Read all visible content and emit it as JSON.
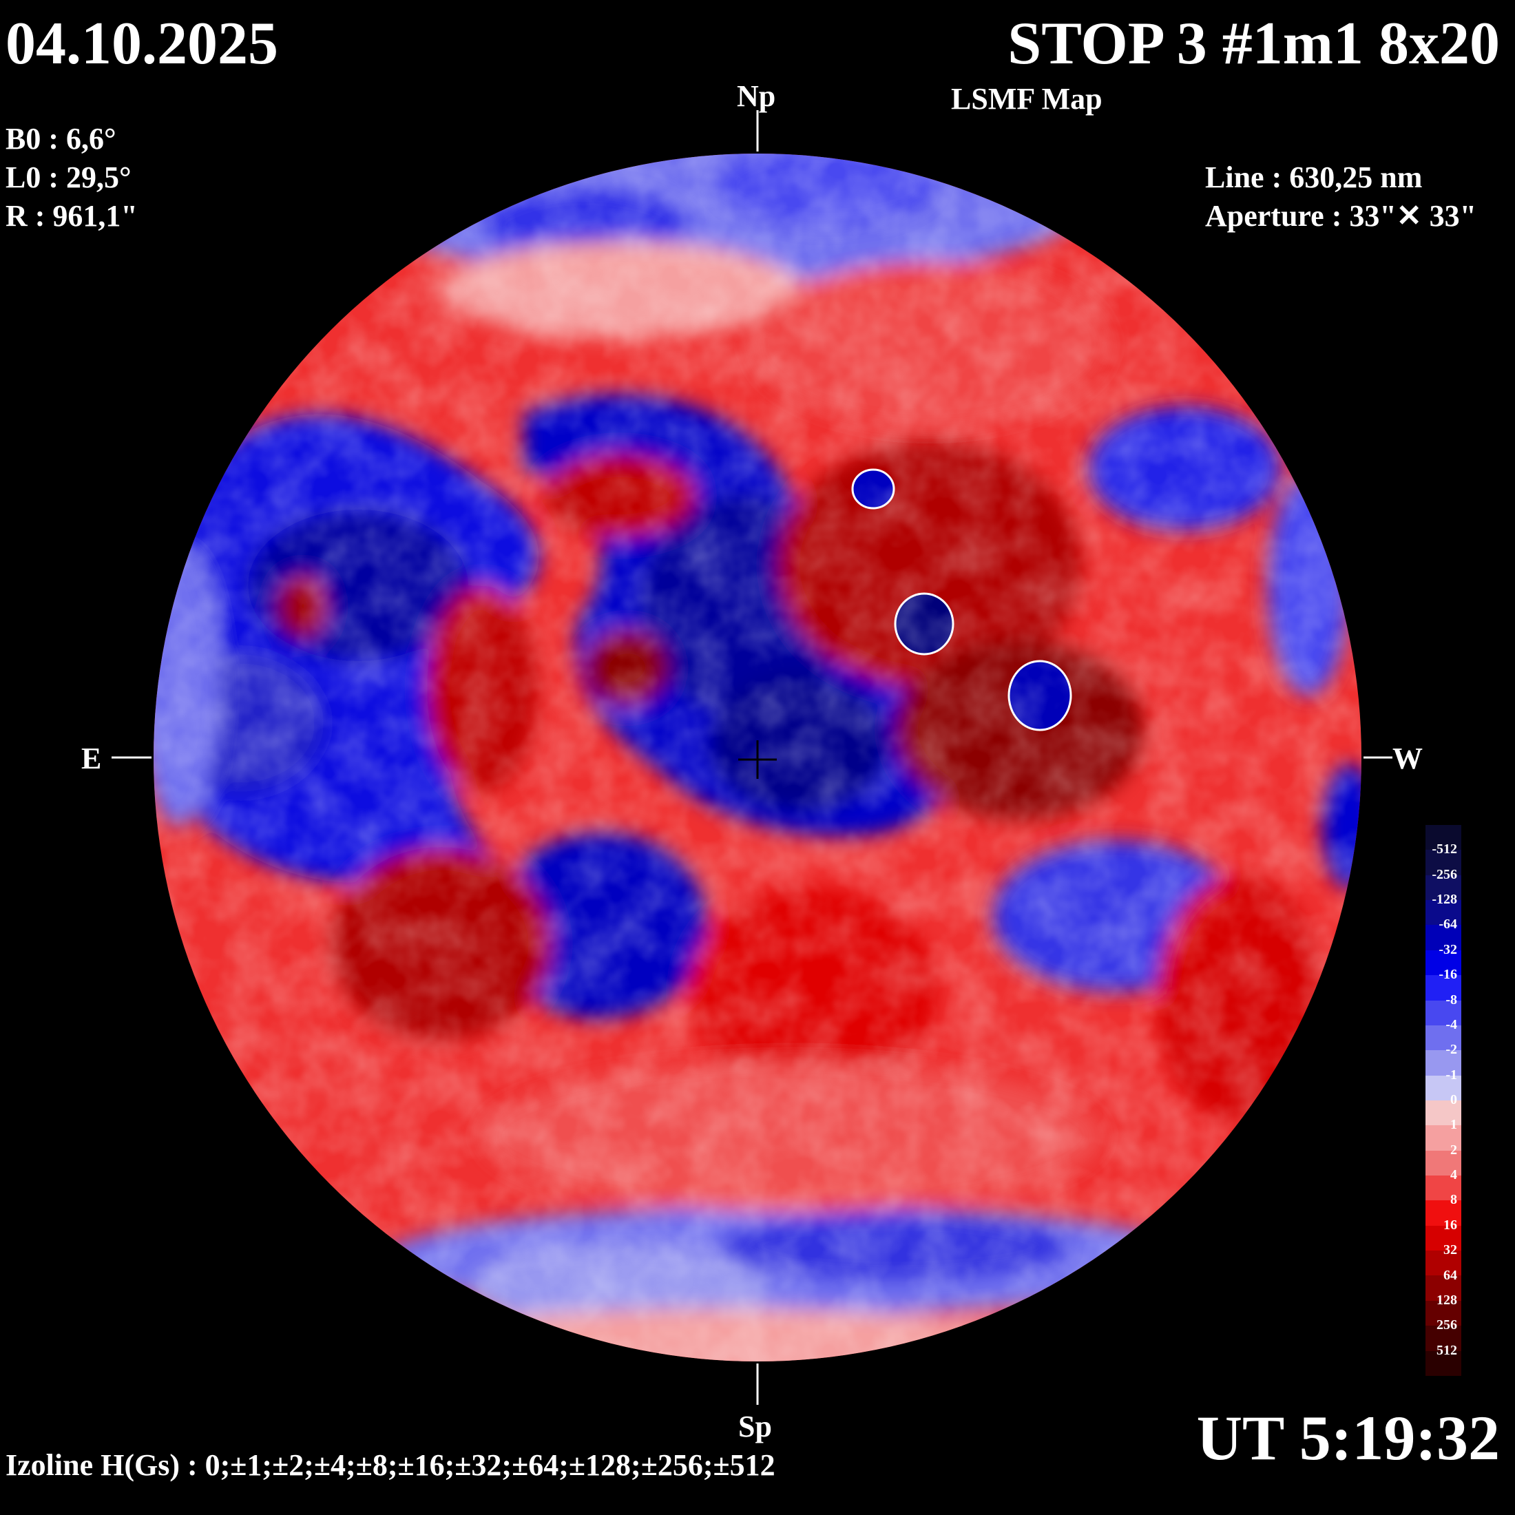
{
  "header": {
    "date": "04.10.2025",
    "title": "STOP 3 #1m1 8x20",
    "subtitle": "LSMF  Map"
  },
  "params_left": {
    "b0": "B0 : 6,6°",
    "l0": "L0 : 29,5°",
    "r": "R  : 961,1\""
  },
  "params_right": {
    "line": "Line :  630,25 nm",
    "aperture": "Aperture : 33\"✕ 33\""
  },
  "orientation": {
    "north": "Np",
    "south": "Sp",
    "east": "E",
    "west": "W"
  },
  "footer": {
    "ut": "UT 5:19:32",
    "izoline": "Izoline H(Gs) : 0;±1;±2;±4;±8;±16;±32;±64;±128;±256;±512"
  },
  "colorbar": {
    "labels": [
      "-512",
      "-256",
      "-128",
      "-64",
      "-32",
      "-16",
      "-8",
      "-4",
      "-2",
      "-1",
      "0",
      "1",
      "2",
      "4",
      "8",
      "16",
      "32",
      "64",
      "128",
      "256",
      "512"
    ],
    "colors": [
      "#0a0a2e",
      "#0d0d45",
      "#0f0f63",
      "#0a0a8c",
      "#0000b8",
      "#0000e6",
      "#2020f5",
      "#4848f0",
      "#6f6fef",
      "#9898f0",
      "#c7c7f5",
      "#f5c7c7",
      "#f5a0a0",
      "#f07878",
      "#f04545",
      "#f00f0f",
      "#d60000",
      "#b00000",
      "#8c0000",
      "#650000",
      "#450000",
      "#2a0000"
    ]
  },
  "map": {
    "positive_color": "#e60000",
    "negative_color": "#0000d0",
    "background": "#000000"
  }
}
